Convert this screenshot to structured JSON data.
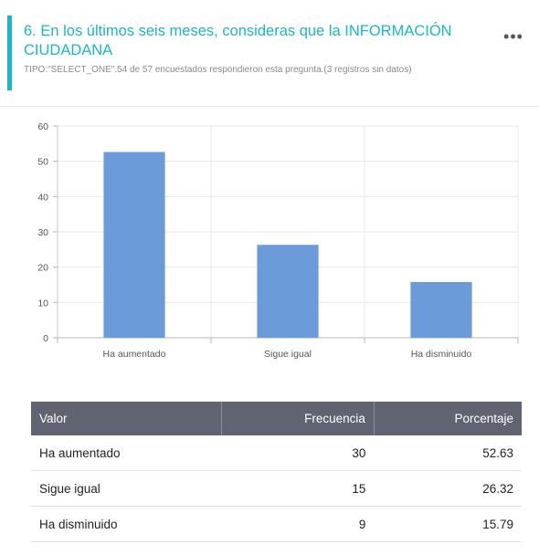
{
  "question": {
    "title": "6. En los últimos seis meses, consideras que la INFORMACIÓN CIUDADANA",
    "subtitle": "TIPO:\"SELECT_ONE\".54 de 57 encuestados respondieron esta pregunta.(3 registros sin datos)",
    "menu_icon": "more-horizontal-icon",
    "menu_glyph": "•••",
    "accent_color": "#1bb6c6"
  },
  "chart_data": {
    "type": "bar",
    "categories": [
      "Ha aumentado",
      "Sigue igual",
      "Ha disminuido"
    ],
    "values": [
      52.63,
      26.32,
      15.79
    ],
    "ylim": [
      0,
      60
    ],
    "yticks": [
      0,
      10,
      20,
      30,
      40,
      50,
      60
    ],
    "grid": true,
    "bar_color": "#6b9bd9"
  },
  "table": {
    "headers": [
      "Valor",
      "Frecuencia",
      "Porcentaje"
    ],
    "rows": [
      [
        "Ha aumentado",
        "30",
        "52.63"
      ],
      [
        "Sigue igual",
        "15",
        "26.32"
      ],
      [
        "Ha disminuido",
        "9",
        "15.79"
      ]
    ]
  }
}
